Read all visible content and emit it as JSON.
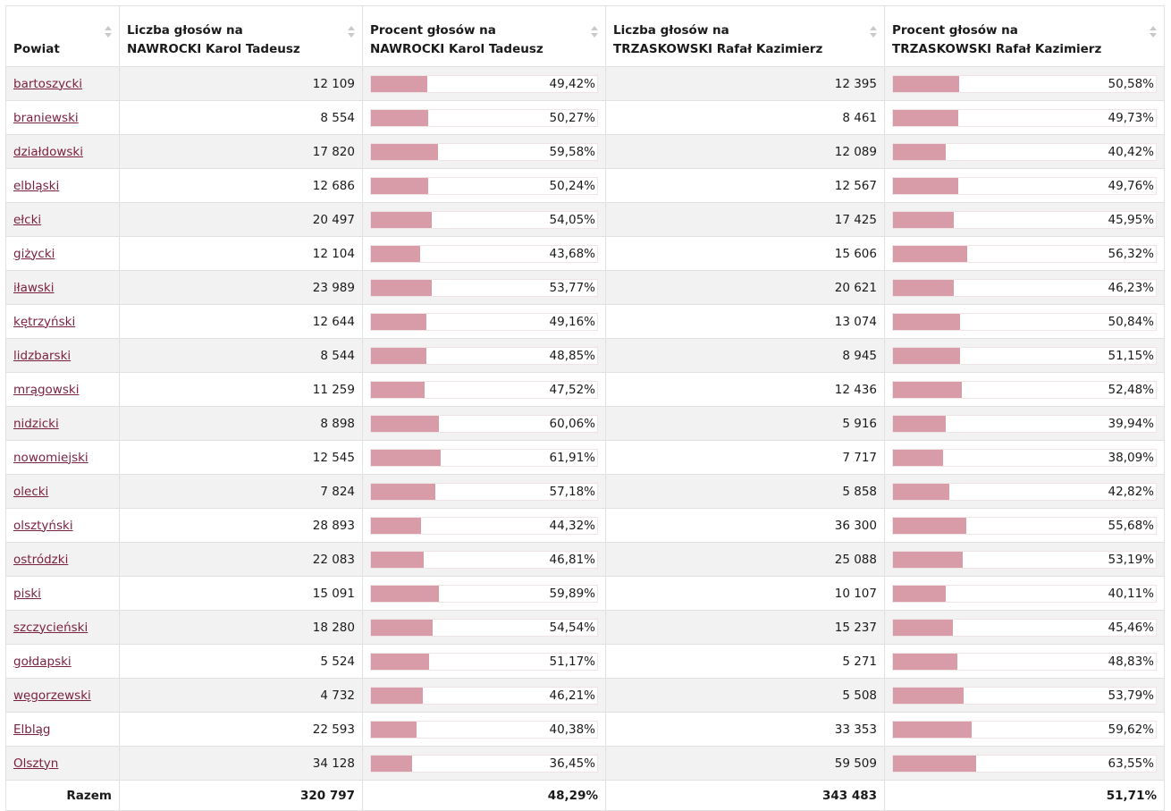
{
  "table": {
    "headers": {
      "powiat": "Powiat",
      "n_votes_line1": "Liczba głosów na",
      "n_votes_line2": "NAWROCKI Karol Tadeusz",
      "n_pct_line1": "Procent głosów na",
      "n_pct_line2": "NAWROCKI Karol Tadeusz",
      "t_votes_line1": "Liczba głosów na",
      "t_votes_line2": "TRZASKOWSKI Rafał Kazimierz",
      "t_pct_line1": "Procent głosów na",
      "t_pct_line2": "TRZASKOWSKI Rafał Kazimierz"
    },
    "bar_color": "#d89ca9",
    "link_color": "#7a1f3d",
    "rows": [
      {
        "name": "bartoszycki",
        "n_votes": "12 109",
        "n_pct": "49,42%",
        "n_val": 49.42,
        "t_votes": "12 395",
        "t_pct": "50,58%",
        "t_val": 50.58
      },
      {
        "name": "braniewski",
        "n_votes": "8 554",
        "n_pct": "50,27%",
        "n_val": 50.27,
        "t_votes": "8 461",
        "t_pct": "49,73%",
        "t_val": 49.73
      },
      {
        "name": "działdowski",
        "n_votes": "17 820",
        "n_pct": "59,58%",
        "n_val": 59.58,
        "t_votes": "12 089",
        "t_pct": "40,42%",
        "t_val": 40.42
      },
      {
        "name": "elbląski",
        "n_votes": "12 686",
        "n_pct": "50,24%",
        "n_val": 50.24,
        "t_votes": "12 567",
        "t_pct": "49,76%",
        "t_val": 49.76
      },
      {
        "name": "ełcki",
        "n_votes": "20 497",
        "n_pct": "54,05%",
        "n_val": 54.05,
        "t_votes": "17 425",
        "t_pct": "45,95%",
        "t_val": 45.95
      },
      {
        "name": "giżycki",
        "n_votes": "12 104",
        "n_pct": "43,68%",
        "n_val": 43.68,
        "t_votes": "15 606",
        "t_pct": "56,32%",
        "t_val": 56.32
      },
      {
        "name": "iławski",
        "n_votes": "23 989",
        "n_pct": "53,77%",
        "n_val": 53.77,
        "t_votes": "20 621",
        "t_pct": "46,23%",
        "t_val": 46.23
      },
      {
        "name": "kętrzyński",
        "n_votes": "12 644",
        "n_pct": "49,16%",
        "n_val": 49.16,
        "t_votes": "13 074",
        "t_pct": "50,84%",
        "t_val": 50.84
      },
      {
        "name": "lidzbarski",
        "n_votes": "8 544",
        "n_pct": "48,85%",
        "n_val": 48.85,
        "t_votes": "8 945",
        "t_pct": "51,15%",
        "t_val": 51.15
      },
      {
        "name": "mrągowski",
        "n_votes": "11 259",
        "n_pct": "47,52%",
        "n_val": 47.52,
        "t_votes": "12 436",
        "t_pct": "52,48%",
        "t_val": 52.48
      },
      {
        "name": "nidzicki",
        "n_votes": "8 898",
        "n_pct": "60,06%",
        "n_val": 60.06,
        "t_votes": "5 916",
        "t_pct": "39,94%",
        "t_val": 39.94
      },
      {
        "name": "nowomiejski",
        "n_votes": "12 545",
        "n_pct": "61,91%",
        "n_val": 61.91,
        "t_votes": "7 717",
        "t_pct": "38,09%",
        "t_val": 38.09
      },
      {
        "name": "olecki",
        "n_votes": "7 824",
        "n_pct": "57,18%",
        "n_val": 57.18,
        "t_votes": "5 858",
        "t_pct": "42,82%",
        "t_val": 42.82
      },
      {
        "name": "olsztyński",
        "n_votes": "28 893",
        "n_pct": "44,32%",
        "n_val": 44.32,
        "t_votes": "36 300",
        "t_pct": "55,68%",
        "t_val": 55.68
      },
      {
        "name": "ostródzki",
        "n_votes": "22 083",
        "n_pct": "46,81%",
        "n_val": 46.81,
        "t_votes": "25 088",
        "t_pct": "53,19%",
        "t_val": 53.19
      },
      {
        "name": "piski",
        "n_votes": "15 091",
        "n_pct": "59,89%",
        "n_val": 59.89,
        "t_votes": "10 107",
        "t_pct": "40,11%",
        "t_val": 40.11
      },
      {
        "name": "szczycieński",
        "n_votes": "18 280",
        "n_pct": "54,54%",
        "n_val": 54.54,
        "t_votes": "15 237",
        "t_pct": "45,46%",
        "t_val": 45.46
      },
      {
        "name": "gołdapski",
        "n_votes": "5 524",
        "n_pct": "51,17%",
        "n_val": 51.17,
        "t_votes": "5 271",
        "t_pct": "48,83%",
        "t_val": 48.83
      },
      {
        "name": "węgorzewski",
        "n_votes": "4 732",
        "n_pct": "46,21%",
        "n_val": 46.21,
        "t_votes": "5 508",
        "t_pct": "53,79%",
        "t_val": 53.79
      },
      {
        "name": "Elbląg",
        "n_votes": "22 593",
        "n_pct": "40,38%",
        "n_val": 40.38,
        "t_votes": "33 353",
        "t_pct": "59,62%",
        "t_val": 59.62
      },
      {
        "name": "Olsztyn",
        "n_votes": "34 128",
        "n_pct": "36,45%",
        "n_val": 36.45,
        "t_votes": "59 509",
        "t_pct": "63,55%",
        "t_val": 63.55
      }
    ],
    "footer": {
      "label": "Razem",
      "n_votes": "320 797",
      "n_pct": "48,29%",
      "t_votes": "343 483",
      "t_pct": "51,71%"
    }
  }
}
